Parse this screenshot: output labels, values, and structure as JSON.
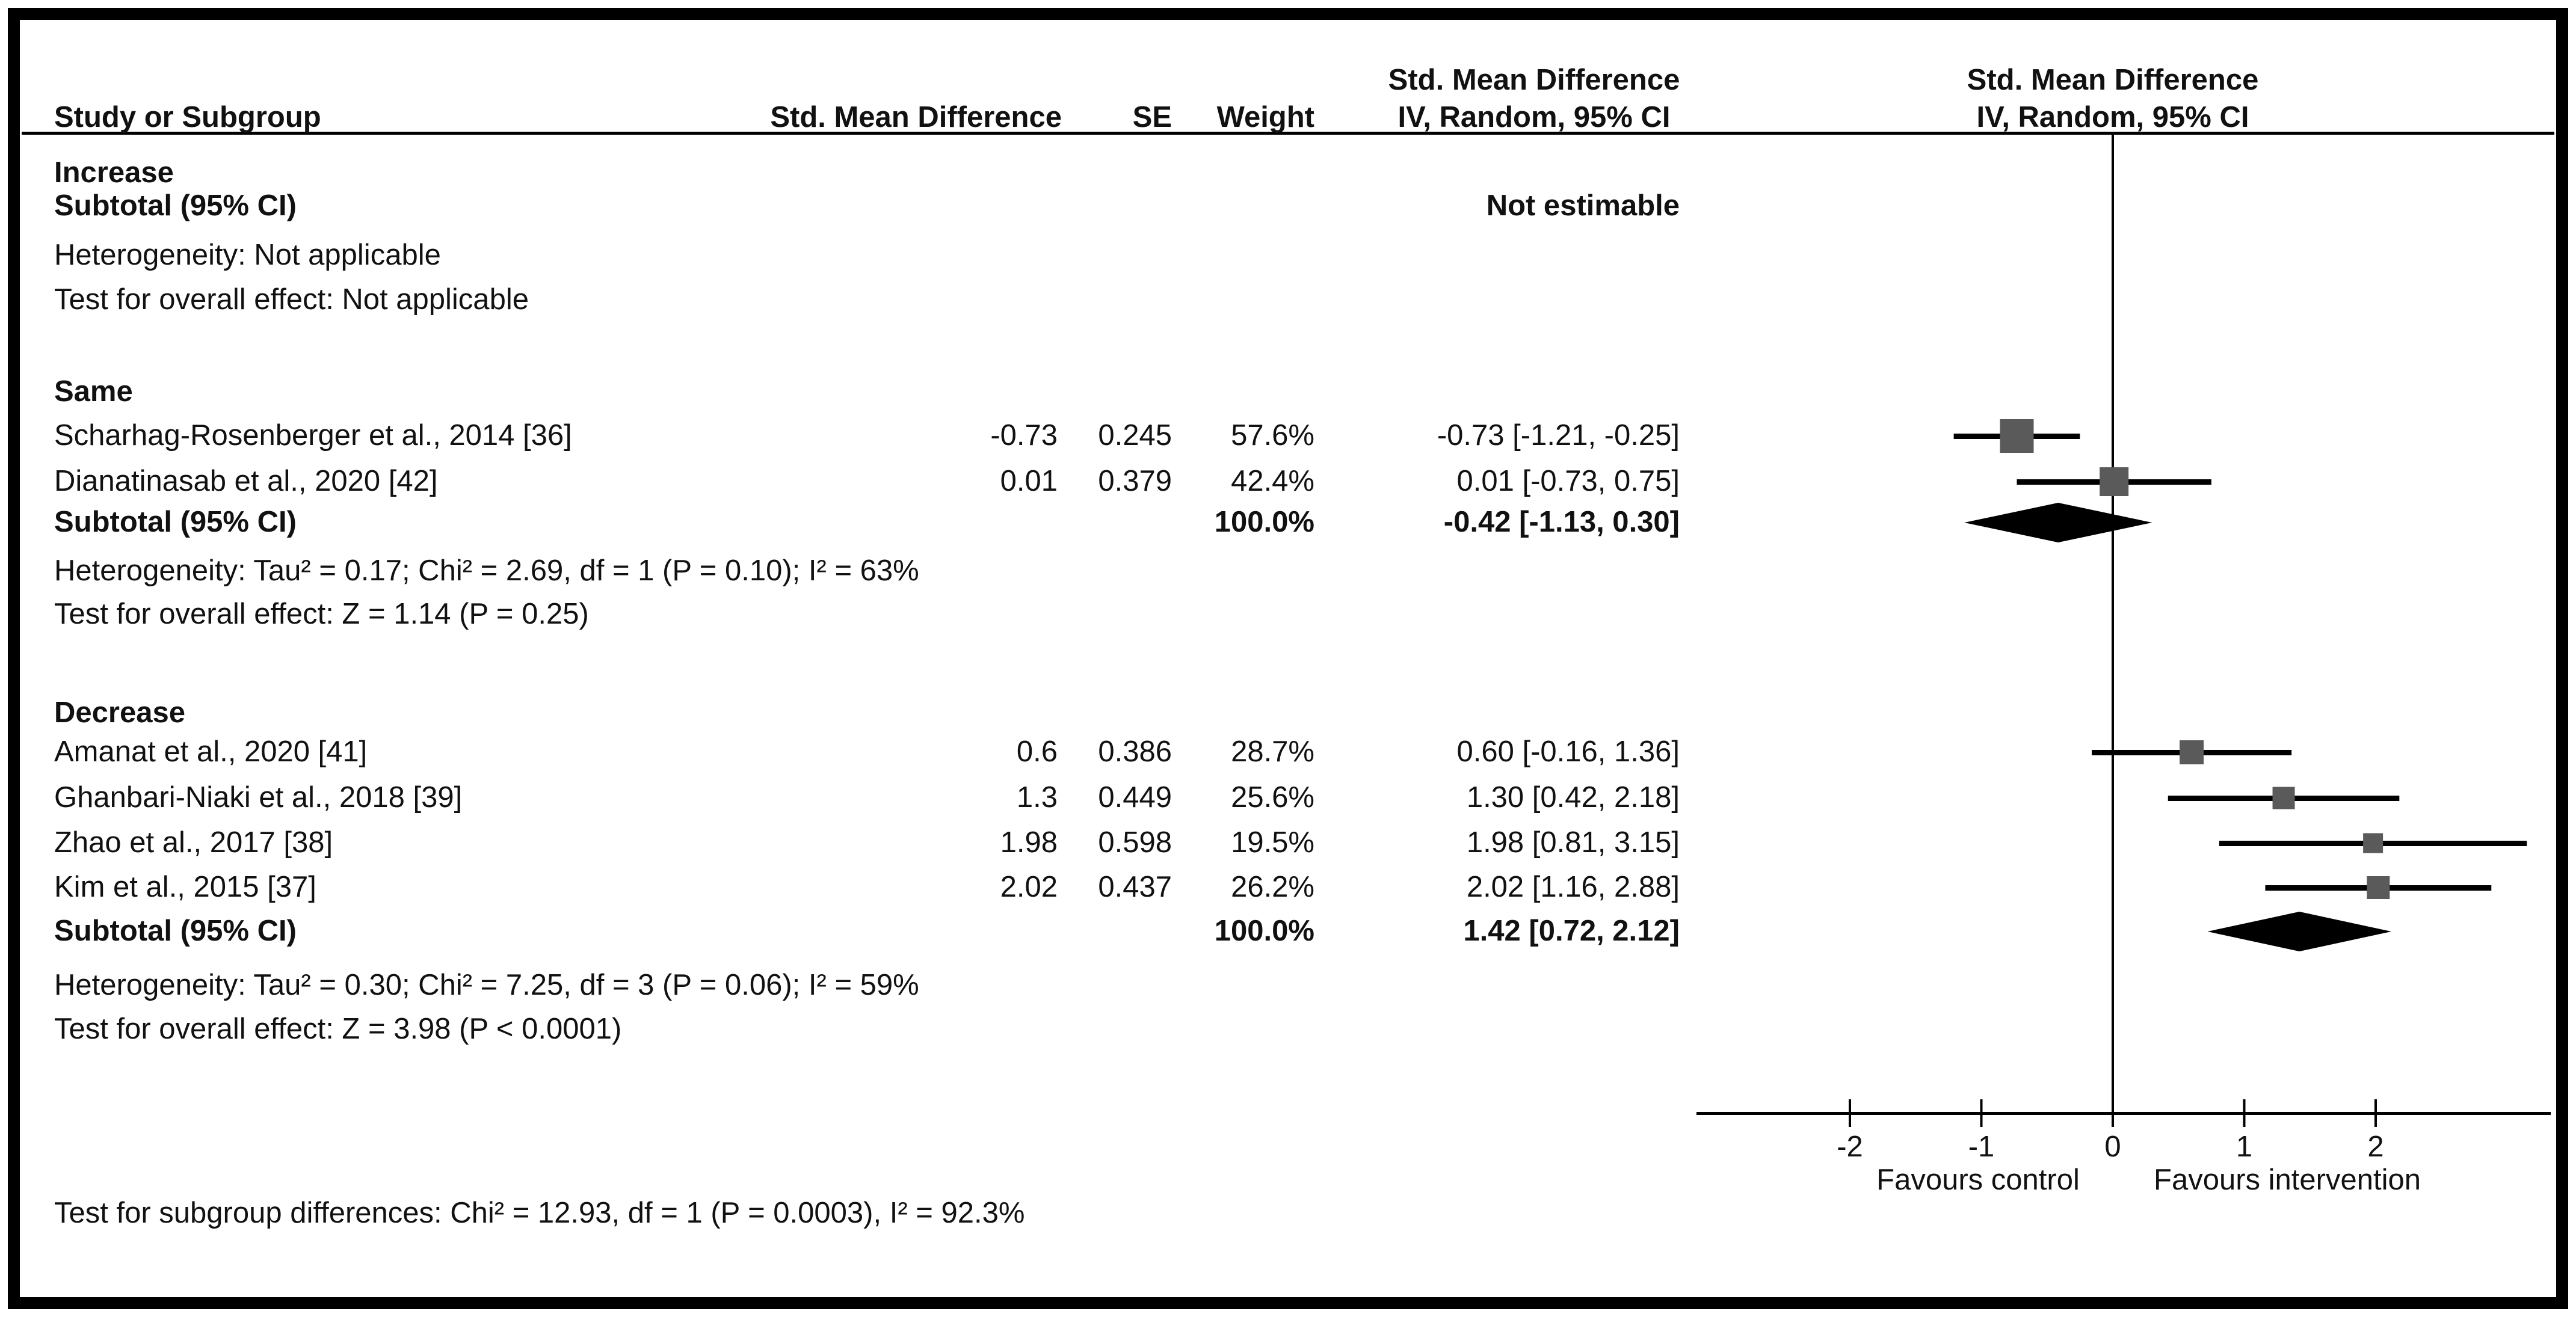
{
  "header": {
    "study": "Study or Subgroup",
    "smd": "Std. Mean Difference",
    "se": "SE",
    "weight": "Weight",
    "ci_line1": "Std. Mean Difference",
    "ci_line2": "IV, Random, 95% CI",
    "plot_line1": "Std. Mean Difference",
    "plot_line2": "IV, Random, 95% CI"
  },
  "axis": {
    "favours_left": "Favours control",
    "favours_right": "Favours intervention"
  },
  "footer": {
    "subgroup_test": "Test for subgroup differences: Chi² = 12.93, df = 1 (P = 0.0003), I² = 92.3%"
  },
  "chart_data": {
    "type": "scatter",
    "subtype": "forest-plot",
    "title": "",
    "effect_measure": "Std. Mean Difference, IV, Random, 95% CI",
    "x_ticks": [
      -2,
      -1,
      0,
      1,
      2
    ],
    "xlim": [
      -3.15,
      3.35
    ],
    "null_line": 0,
    "legend_position": "none",
    "grid": false,
    "colors": {
      "square": "#5a5a5a",
      "diamond": "#000000",
      "line": "#000000",
      "text": "#111111"
    },
    "groups": [
      {
        "name": "Increase",
        "studies": [],
        "subtotal": {
          "label": "Subtotal (95% CI)",
          "weight": "",
          "ci_text": "Not estimable",
          "est": null,
          "lo": null,
          "hi": null
        },
        "heterogeneity": "Heterogeneity: Not applicable",
        "overall_test": "Test for overall effect: Not applicable"
      },
      {
        "name": "Same",
        "studies": [
          {
            "name": "Scharhag-Rosenberger et al., 2014 [36]",
            "smd": "-0.73",
            "se": "0.245",
            "weight": "57.6%",
            "ci_text": "-0.73 [-1.21, -0.25]",
            "est": -0.73,
            "lo": -1.21,
            "hi": -0.25,
            "weight_pct": 57.6
          },
          {
            "name": "Dianatinasab et al., 2020 [42]",
            "smd": "0.01",
            "se": "0.379",
            "weight": "42.4%",
            "ci_text": "0.01 [-0.73, 0.75]",
            "est": 0.01,
            "lo": -0.73,
            "hi": 0.75,
            "weight_pct": 42.4
          }
        ],
        "subtotal": {
          "label": "Subtotal (95% CI)",
          "weight": "100.0%",
          "ci_text": "-0.42 [-1.13, 0.30]",
          "est": -0.42,
          "lo": -1.13,
          "hi": 0.3
        },
        "heterogeneity": "Heterogeneity: Tau² = 0.17; Chi² = 2.69, df = 1 (P = 0.10); I² = 63%",
        "overall_test": "Test for overall effect: Z = 1.14 (P = 0.25)"
      },
      {
        "name": "Decrease",
        "studies": [
          {
            "name": "Amanat et al., 2020 [41]",
            "smd": "0.6",
            "se": "0.386",
            "weight": "28.7%",
            "ci_text": "0.60 [-0.16, 1.36]",
            "est": 0.6,
            "lo": -0.16,
            "hi": 1.36,
            "weight_pct": 28.7
          },
          {
            "name": "Ghanbari-Niaki et al., 2018 [39]",
            "smd": "1.3",
            "se": "0.449",
            "weight": "25.6%",
            "ci_text": "1.30 [0.42, 2.18]",
            "est": 1.3,
            "lo": 0.42,
            "hi": 2.18,
            "weight_pct": 25.6
          },
          {
            "name": "Zhao et al., 2017 [38]",
            "smd": "1.98",
            "se": "0.598",
            "weight": "19.5%",
            "ci_text": "1.98 [0.81, 3.15]",
            "est": 1.98,
            "lo": 0.81,
            "hi": 3.15,
            "weight_pct": 19.5
          },
          {
            "name": "Kim et al., 2015 [37]",
            "smd": "2.02",
            "se": "0.437",
            "weight": "26.2%",
            "ci_text": "2.02 [1.16, 2.88]",
            "est": 2.02,
            "lo": 1.16,
            "hi": 2.88,
            "weight_pct": 26.2
          }
        ],
        "subtotal": {
          "label": "Subtotal (95% CI)",
          "weight": "100.0%",
          "ci_text": "1.42 [0.72, 2.12]",
          "est": 1.42,
          "lo": 0.72,
          "hi": 2.12
        },
        "heterogeneity": "Heterogeneity: Tau² = 0.30; Chi² = 7.25, df = 3 (P = 0.06); I² = 59%",
        "overall_test": "Test for overall effect: Z = 3.98 (P < 0.0001)"
      }
    ]
  }
}
